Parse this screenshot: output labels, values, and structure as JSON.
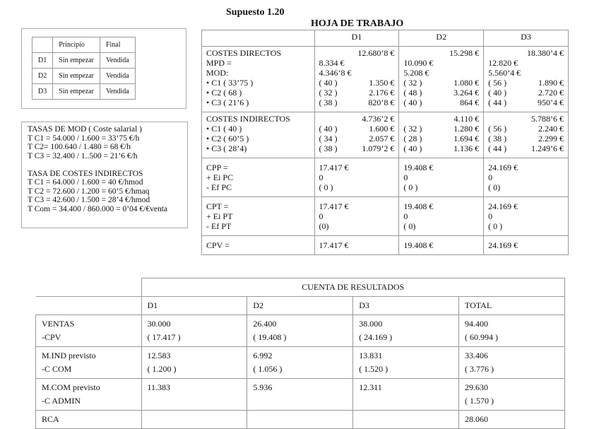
{
  "title": "Supuesto 1.20",
  "subtitle": "HOJA DE TRABAJO",
  "status_table": {
    "headers": [
      "",
      "Principio",
      "Final"
    ],
    "rows": [
      [
        "D1",
        "Sin empezar",
        "Vendida"
      ],
      [
        "D2",
        "Sin empezar",
        "Vendida"
      ],
      [
        "D3",
        "Sin empezar",
        "Vendida"
      ]
    ]
  },
  "tasas": {
    "lines": [
      "TASAS DE MOD ( Coste salarial )",
      "T C1 = 54.000 / 1.600 = 33’75 €/h",
      "T C2= 100.640 / 1.480 = 68 €/h",
      "T C3 = 32.400 / 1..500 = 21’6  €/h",
      "",
      "TASA DE COSTES INDIRECTOS",
      "T C1 = 64.000 / 1.600 = 40  €/hmod",
      "T C2 = 72.600 / 1.200 = 60’5 €/hmaq",
      "T C3 = 42.600 / 1.500 = 28’4 €/hmod",
      "T Com = 34.400 / 860.000 = 0’04 €/€venta"
    ]
  },
  "hoja": {
    "headers": [
      "",
      "D1",
      "D2",
      "D3"
    ],
    "directos": {
      "labels": [
        "COSTES DIRECTOS",
        "MPD =",
        "MOD:",
        "• C1 ( 33’75 )",
        "• C2 ( 68 )",
        "• C3 ( 21’6 )"
      ],
      "cols": [
        {
          "total": "12.680’8 €",
          "mpd": "8.334 €",
          "mod": "4.346’8 €",
          "c": [
            [
              "( 40 )",
              "1.350 €"
            ],
            [
              "( 32 )",
              "2.176 €"
            ],
            [
              "( 38 )",
              "820’8 €"
            ]
          ]
        },
        {
          "total": "15.298 €",
          "mpd": "10.090 €",
          "mod": "5.208 €",
          "c": [
            [
              "( 32 )",
              "1.080 €"
            ],
            [
              "( 48 )",
              "3.264 €"
            ],
            [
              "( 40 )",
              "864 €"
            ]
          ]
        },
        {
          "total": "18.380’4 €",
          "mpd": "12.820 €",
          "mod": "5.560’4 €",
          "c": [
            [
              "( 56 )",
              "1.890 €"
            ],
            [
              "( 40 )",
              "2.720 €"
            ],
            [
              "( 44 )",
              "950’4 €"
            ]
          ]
        }
      ]
    },
    "indirectos": {
      "labels": [
        "COSTES INDIRECTOS",
        "• C1  ( 40 )",
        "• C2 ( 60’5 )",
        "• C3  ( 28’4)"
      ],
      "cols": [
        {
          "total": "4.736’2 €",
          "c": [
            [
              "( 40 )",
              "1.600 €"
            ],
            [
              "( 34 )",
              "2.057 €"
            ],
            [
              "( 38 )",
              "1.079’2 €"
            ]
          ]
        },
        {
          "total": "4.110 €",
          "c": [
            [
              "( 32 )",
              "1.280 €"
            ],
            [
              "( 28 )",
              "1.694 €"
            ],
            [
              "( 40 )",
              "1.136 €"
            ]
          ]
        },
        {
          "total": "5.788’6 €",
          "c": [
            [
              "( 56 )",
              "2.240 €"
            ],
            [
              "( 38 )",
              "2.299 €"
            ],
            [
              "( 44 )",
              "1.249’6 €"
            ]
          ]
        }
      ]
    },
    "cpp": {
      "labels": [
        "CPP =",
        "+ Ei PC",
        "- Ef PC"
      ],
      "cols": [
        [
          "17.417 €",
          "0",
          "( 0 )"
        ],
        [
          "19.408 €",
          "0",
          "( 0 )"
        ],
        [
          "24.169 €",
          "0",
          "( 0)"
        ]
      ]
    },
    "cpt": {
      "labels": [
        "CPT =",
        "+ Ei PT",
        "- Ef PT"
      ],
      "cols": [
        [
          "17.417 €",
          "0",
          "(0)"
        ],
        [
          "19.408 €",
          "0",
          "( 0)"
        ],
        [
          "24.169 €",
          "0",
          "( 0 )"
        ]
      ]
    },
    "cpv": {
      "label": "CPV =",
      "cols": [
        "17.417 €",
        "19.408 €",
        "24.169 €"
      ]
    }
  },
  "resultados": {
    "title": "CUENTA DE  RESULTADOS",
    "headers": [
      "D1",
      "D2",
      "D3",
      "TOTAL"
    ],
    "rows": [
      {
        "labels": [
          "VENTAS",
          "-CPV"
        ],
        "cells": [
          [
            "30.000",
            "( 17.417 )"
          ],
          [
            "26.400",
            "( 19.408 )"
          ],
          [
            "38.000",
            "( 24.169 )"
          ],
          [
            "94.400",
            "( 60.994 )"
          ]
        ]
      },
      {
        "labels": [
          "M.IND previsto",
          "-C COM"
        ],
        "cells": [
          [
            "12.583",
            "( 1.200 )"
          ],
          [
            "6.992",
            "( 1.056 )"
          ],
          [
            "13.831",
            "( 1.520 )"
          ],
          [
            "33.406",
            "( 3.776 )"
          ]
        ]
      },
      {
        "labels": [
          "M.COM previsto",
          "-C ADMIN"
        ],
        "cells": [
          [
            "11.383",
            ""
          ],
          [
            "5.936",
            ""
          ],
          [
            "12.311",
            ""
          ],
          [
            "29.630",
            "( 1.570 )"
          ]
        ]
      },
      {
        "labels": [
          "RCA"
        ],
        "cells": [
          [
            ""
          ],
          [
            ""
          ],
          [
            ""
          ],
          [
            "28.060"
          ]
        ]
      }
    ]
  }
}
